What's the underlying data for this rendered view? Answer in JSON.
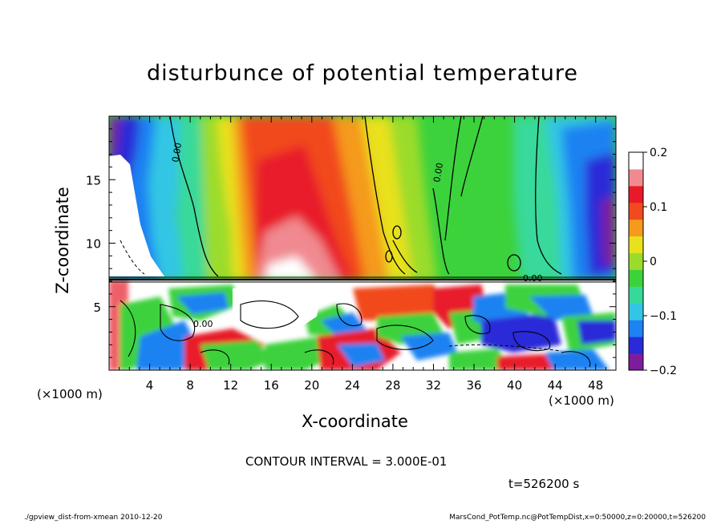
{
  "chart_data": {
    "type": "heatmap",
    "title": "disturbunce of potential temperature",
    "xlabel": "X-coordinate",
    "ylabel": "Z-coordinate",
    "x_unit": "(×1000 m)",
    "y_unit": "(×1000 m)",
    "xlim": [
      0,
      50
    ],
    "ylim": [
      0,
      20
    ],
    "xticks": [
      4,
      8,
      12,
      16,
      20,
      24,
      28,
      32,
      36,
      40,
      44,
      48
    ],
    "yticks": [
      5,
      10,
      15
    ],
    "colorbar": {
      "range": [
        -0.2,
        0.2
      ],
      "ticks": [
        "0.2",
        "0.1",
        "0",
        "−0.1",
        "−0.2"
      ],
      "colors": [
        "#7e1c9e",
        "#2a2ad8",
        "#1e82f2",
        "#33c6e4",
        "#37d99a",
        "#3cd23c",
        "#9bdc2b",
        "#e8e11e",
        "#f59a1d",
        "#f24a1e",
        "#e81a2a",
        "#f08a90",
        "#ffffff"
      ]
    },
    "contour_interval": "CONTOUR INTERVAL = 3.000E-01",
    "contour_labels": [
      "0.00",
      "0.00",
      "0.00",
      "0.00"
    ],
    "grid": false
  },
  "time_label": "t=526200 s",
  "footer": {
    "left": "./gpview_dist-from-xmean  2010-12-20",
    "right": "MarsCond_PotTemp.nc@PotTempDist,x=0:50000,z=0:20000,t=526200"
  }
}
